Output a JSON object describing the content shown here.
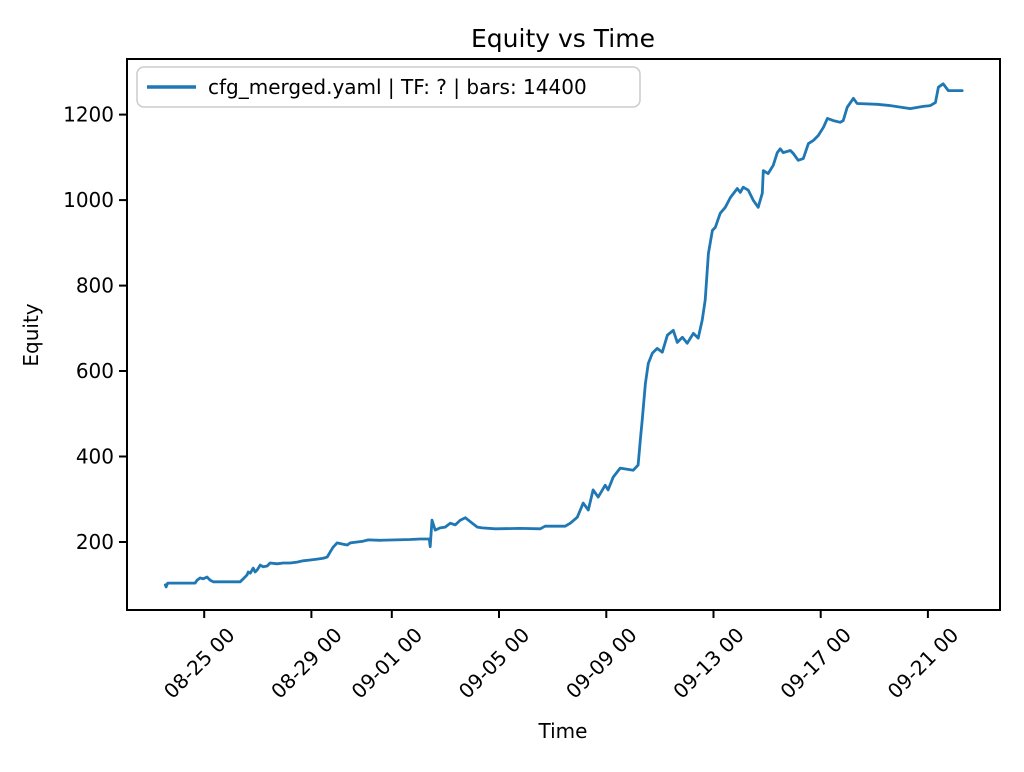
{
  "chart_data": {
    "type": "line",
    "title": "Equity vs Time",
    "xlabel": "Time",
    "ylabel": "Equity",
    "legend": {
      "position": "upper left",
      "entries": [
        {
          "label": "cfg_merged.yaml | TF: ? | bars: 14400",
          "color": "#1f77b4"
        }
      ]
    },
    "line_color": "#1f77b4",
    "grid": false,
    "x_unit": "days since 08-25 00:00",
    "xlim": [
      -2.88,
      29.69
    ],
    "ylim": [
      41,
      1330
    ],
    "yticks": [
      200,
      400,
      600,
      800,
      1000,
      1200
    ],
    "xticks": [
      {
        "t": 0,
        "label": "08-25 00"
      },
      {
        "t": 4,
        "label": "08-29 00"
      },
      {
        "t": 7,
        "label": "09-01 00"
      },
      {
        "t": 11,
        "label": "09-05 00"
      },
      {
        "t": 15,
        "label": "09-09 00"
      },
      {
        "t": 19,
        "label": "09-13 00"
      },
      {
        "t": 23,
        "label": "09-17 00"
      },
      {
        "t": 27,
        "label": "09-21 00"
      }
    ],
    "points": [
      [
        -1.45,
        100
      ],
      [
        -1.42,
        95
      ],
      [
        -1.36,
        104
      ],
      [
        -0.34,
        104
      ],
      [
        -0.26,
        111
      ],
      [
        -0.15,
        116
      ],
      [
        -0.04,
        114
      ],
      [
        0.11,
        118
      ],
      [
        0.22,
        111
      ],
      [
        0.34,
        107
      ],
      [
        1.34,
        107
      ],
      [
        1.46,
        114
      ],
      [
        1.6,
        123
      ],
      [
        1.64,
        130
      ],
      [
        1.72,
        127
      ],
      [
        1.83,
        139
      ],
      [
        1.9,
        130
      ],
      [
        1.98,
        135
      ],
      [
        2.09,
        146
      ],
      [
        2.2,
        142
      ],
      [
        2.35,
        144
      ],
      [
        2.46,
        151
      ],
      [
        2.72,
        149
      ],
      [
        2.95,
        151
      ],
      [
        3.21,
        151
      ],
      [
        3.47,
        153
      ],
      [
        3.69,
        156
      ],
      [
        3.96,
        158
      ],
      [
        4.22,
        160
      ],
      [
        4.44,
        162
      ],
      [
        4.59,
        165
      ],
      [
        4.7,
        177
      ],
      [
        4.81,
        188
      ],
      [
        4.96,
        198
      ],
      [
        5.19,
        195
      ],
      [
        5.34,
        193
      ],
      [
        5.45,
        198
      ],
      [
        5.71,
        200
      ],
      [
        5.93,
        202
      ],
      [
        6.12,
        205
      ],
      [
        6.57,
        204
      ],
      [
        7.13,
        205
      ],
      [
        7.69,
        206
      ],
      [
        8.06,
        207
      ],
      [
        8.4,
        207
      ],
      [
        8.43,
        189
      ],
      [
        8.5,
        251
      ],
      [
        8.62,
        228
      ],
      [
        8.8,
        233
      ],
      [
        8.99,
        235
      ],
      [
        9.18,
        244
      ],
      [
        9.37,
        240
      ],
      [
        9.55,
        251
      ],
      [
        9.74,
        257
      ],
      [
        10.0,
        244
      ],
      [
        10.19,
        235
      ],
      [
        10.37,
        233
      ],
      [
        10.86,
        231
      ],
      [
        11.79,
        232
      ],
      [
        12.54,
        231
      ],
      [
        12.72,
        237
      ],
      [
        13.47,
        237
      ],
      [
        13.66,
        244
      ],
      [
        13.92,
        258
      ],
      [
        14.14,
        291
      ],
      [
        14.33,
        275
      ],
      [
        14.51,
        322
      ],
      [
        14.7,
        305
      ],
      [
        14.96,
        333
      ],
      [
        15.07,
        322
      ],
      [
        15.26,
        352
      ],
      [
        15.52,
        373
      ],
      [
        16.01,
        368
      ],
      [
        16.19,
        380
      ],
      [
        16.27,
        438
      ],
      [
        16.34,
        485
      ],
      [
        16.46,
        571
      ],
      [
        16.57,
        618
      ],
      [
        16.72,
        642
      ],
      [
        16.9,
        653
      ],
      [
        17.09,
        644
      ],
      [
        17.28,
        684
      ],
      [
        17.5,
        695
      ],
      [
        17.65,
        667
      ],
      [
        17.84,
        679
      ],
      [
        18.02,
        665
      ],
      [
        18.25,
        688
      ],
      [
        18.43,
        677
      ],
      [
        18.58,
        719
      ],
      [
        18.69,
        766
      ],
      [
        18.81,
        875
      ],
      [
        18.96,
        929
      ],
      [
        19.07,
        936
      ],
      [
        19.25,
        969
      ],
      [
        19.44,
        983
      ],
      [
        19.63,
        1006
      ],
      [
        19.89,
        1027
      ],
      [
        20.0,
        1018
      ],
      [
        20.11,
        1030
      ],
      [
        20.3,
        1023
      ],
      [
        20.49,
        999
      ],
      [
        20.67,
        983
      ],
      [
        20.82,
        1016
      ],
      [
        20.86,
        1069
      ],
      [
        21.04,
        1062
      ],
      [
        21.23,
        1081
      ],
      [
        21.38,
        1111
      ],
      [
        21.49,
        1120
      ],
      [
        21.6,
        1111
      ],
      [
        21.87,
        1116
      ],
      [
        21.98,
        1109
      ],
      [
        22.16,
        1093
      ],
      [
        22.35,
        1097
      ],
      [
        22.54,
        1132
      ],
      [
        22.72,
        1139
      ],
      [
        22.91,
        1151
      ],
      [
        23.1,
        1170
      ],
      [
        23.25,
        1191
      ],
      [
        23.47,
        1186
      ],
      [
        23.73,
        1182
      ],
      [
        23.84,
        1186
      ],
      [
        23.99,
        1217
      ],
      [
        24.22,
        1238
      ],
      [
        24.36,
        1226
      ],
      [
        25.11,
        1224
      ],
      [
        25.6,
        1221
      ],
      [
        26.34,
        1214
      ],
      [
        26.83,
        1219
      ],
      [
        27.09,
        1221
      ],
      [
        27.28,
        1228
      ],
      [
        27.39,
        1264
      ],
      [
        27.57,
        1272
      ],
      [
        27.76,
        1256
      ],
      [
        28.28,
        1256
      ]
    ]
  }
}
